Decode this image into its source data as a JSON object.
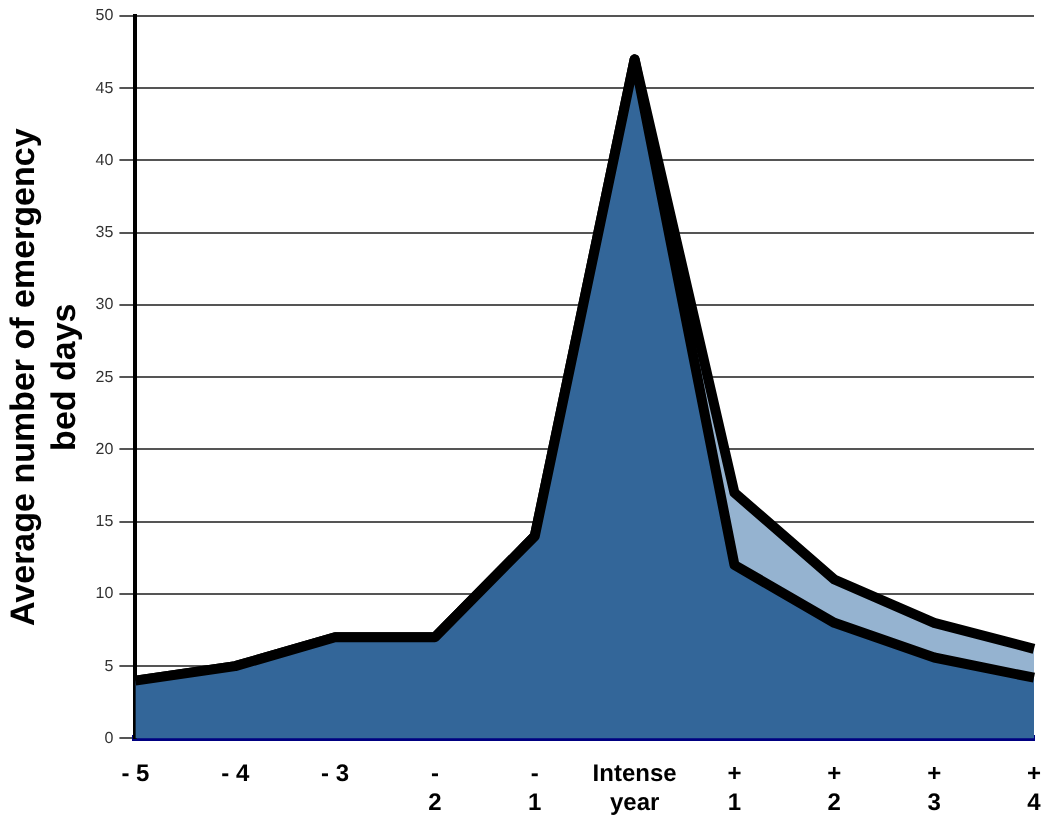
{
  "chart_data": {
    "type": "area",
    "ylabel": "Average number of emergency bed days",
    "categories": [
      "- 5",
      "- 4",
      "- 3",
      "-\n2",
      "-\n1",
      "Intense\nyear",
      "+\n1",
      "+\n2",
      "+\n3",
      "+\n4"
    ],
    "series": [
      {
        "color": "#336699",
        "values": [
          4,
          5,
          7,
          7,
          14,
          47,
          12,
          8,
          5.6,
          4.2
        ]
      },
      {
        "color": "#95b3d0",
        "values": [
          0,
          0,
          0,
          0,
          0,
          0,
          5,
          3,
          2.4,
          2
        ]
      }
    ],
    "ylim": [
      0,
      50
    ],
    "yticks": [
      0,
      5,
      10,
      15,
      20,
      25,
      30,
      35,
      40,
      45,
      50
    ],
    "stacked": true,
    "grid": "y",
    "legend": false
  }
}
